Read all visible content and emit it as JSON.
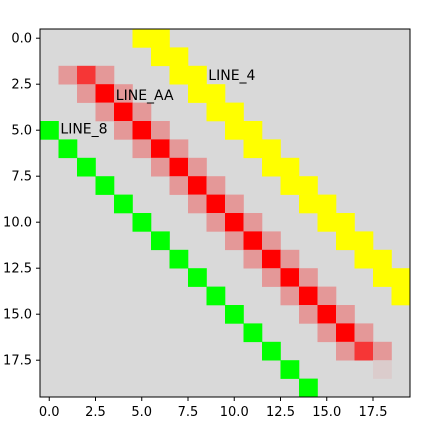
{
  "chart_data": {
    "type": "heatmap",
    "title": "",
    "xlabel": "",
    "ylabel": "",
    "xlim": [
      -0.5,
      19.5
    ],
    "ylim": [
      19.5,
      -0.5
    ],
    "y_axis_inverted": true,
    "grid": false,
    "background_color": "#d9d9d9",
    "x_ticks": [
      "0.0",
      "2.5",
      "5.0",
      "7.5",
      "10.0",
      "12.5",
      "15.0",
      "17.5"
    ],
    "y_ticks": [
      "0.0",
      "2.5",
      "5.0",
      "7.5",
      "10.0",
      "12.5",
      "15.0",
      "17.5"
    ],
    "lines": [
      {
        "label": "LINE_4",
        "color": "#ffff00",
        "label_at": [
          8.6,
          2.0
        ],
        "cells": [
          [
            0,
            5,
            1
          ],
          [
            0,
            6,
            1
          ],
          [
            1,
            6,
            1
          ],
          [
            1,
            7,
            1
          ],
          [
            2,
            7,
            1
          ],
          [
            2,
            8,
            1
          ],
          [
            3,
            8,
            1
          ],
          [
            3,
            9,
            1
          ],
          [
            4,
            9,
            1
          ],
          [
            4,
            10,
            1
          ],
          [
            5,
            10,
            1
          ],
          [
            5,
            11,
            1
          ],
          [
            6,
            11,
            1
          ],
          [
            6,
            12,
            1
          ],
          [
            7,
            12,
            1
          ],
          [
            7,
            13,
            1
          ],
          [
            8,
            13,
            1
          ],
          [
            8,
            14,
            1
          ],
          [
            9,
            14,
            1
          ],
          [
            9,
            15,
            1
          ],
          [
            10,
            15,
            1
          ],
          [
            10,
            16,
            1
          ],
          [
            11,
            16,
            1
          ],
          [
            11,
            17,
            1
          ],
          [
            12,
            17,
            1
          ],
          [
            12,
            18,
            1
          ],
          [
            13,
            18,
            1
          ],
          [
            13,
            19,
            1
          ],
          [
            14,
            19,
            1
          ]
        ]
      },
      {
        "label": "LINE_AA",
        "color": "#ff0000",
        "label_at": [
          3.6,
          3.1
        ],
        "cells": [
          [
            2,
            1,
            0.3
          ],
          [
            2,
            2,
            0.75
          ],
          [
            2,
            3,
            0.3
          ],
          [
            3,
            2,
            0.3
          ],
          [
            3,
            3,
            1
          ],
          [
            3,
            4,
            0.3
          ],
          [
            4,
            3,
            0.3
          ],
          [
            4,
            4,
            1
          ],
          [
            4,
            5,
            0.3
          ],
          [
            5,
            4,
            0.3
          ],
          [
            5,
            5,
            1
          ],
          [
            5,
            6,
            0.3
          ],
          [
            6,
            5,
            0.3
          ],
          [
            6,
            6,
            1
          ],
          [
            6,
            7,
            0.3
          ],
          [
            7,
            6,
            0.3
          ],
          [
            7,
            7,
            1
          ],
          [
            7,
            8,
            0.3
          ],
          [
            8,
            7,
            0.3
          ],
          [
            8,
            8,
            1
          ],
          [
            8,
            9,
            0.3
          ],
          [
            9,
            8,
            0.3
          ],
          [
            9,
            9,
            1
          ],
          [
            9,
            10,
            0.3
          ],
          [
            10,
            9,
            0.3
          ],
          [
            10,
            10,
            1
          ],
          [
            10,
            11,
            0.3
          ],
          [
            11,
            10,
            0.3
          ],
          [
            11,
            11,
            1
          ],
          [
            11,
            12,
            0.3
          ],
          [
            12,
            11,
            0.3
          ],
          [
            12,
            12,
            1
          ],
          [
            12,
            13,
            0.3
          ],
          [
            13,
            12,
            0.3
          ],
          [
            13,
            13,
            1
          ],
          [
            13,
            14,
            0.3
          ],
          [
            14,
            13,
            0.3
          ],
          [
            14,
            14,
            1
          ],
          [
            14,
            15,
            0.3
          ],
          [
            15,
            14,
            0.3
          ],
          [
            15,
            15,
            1
          ],
          [
            15,
            16,
            0.3
          ],
          [
            16,
            15,
            0.3
          ],
          [
            16,
            16,
            1
          ],
          [
            16,
            17,
            0.3
          ],
          [
            17,
            16,
            0.3
          ],
          [
            17,
            17,
            0.75
          ],
          [
            17,
            18,
            0.3
          ],
          [
            18,
            18,
            0.06
          ]
        ]
      },
      {
        "label": "LINE_8",
        "color": "#00ff00",
        "label_at": [
          0.6,
          4.9
        ],
        "cells": [
          [
            5,
            0,
            1
          ],
          [
            6,
            1,
            1
          ],
          [
            7,
            2,
            1
          ],
          [
            8,
            3,
            1
          ],
          [
            9,
            4,
            1
          ],
          [
            10,
            5,
            1
          ],
          [
            11,
            6,
            1
          ],
          [
            12,
            7,
            1
          ],
          [
            13,
            8,
            1
          ],
          [
            14,
            9,
            1
          ],
          [
            15,
            10,
            1
          ],
          [
            16,
            11,
            1
          ],
          [
            17,
            12,
            1
          ],
          [
            18,
            13,
            1
          ],
          [
            19,
            14,
            1
          ]
        ]
      }
    ]
  }
}
